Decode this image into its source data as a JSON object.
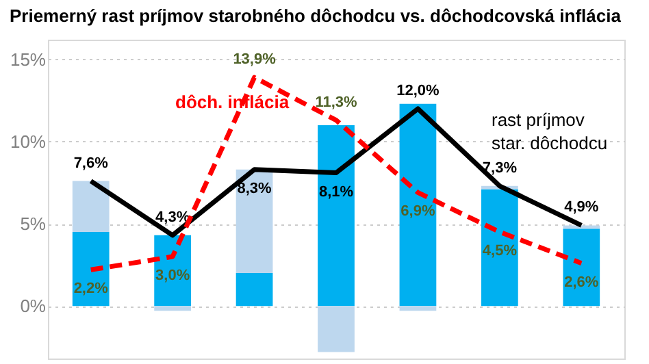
{
  "chart_data": {
    "type": "bar",
    "title": "Priemerný rast príjmov starobného dôchodcu vs. dôchodcovská inflácia",
    "categories": [
      null,
      null,
      null,
      null,
      null,
      null,
      null
    ],
    "stacked": true,
    "series": [
      {
        "color": "#00b0f0",
        "values": [
          4.5,
          4.3,
          2.0,
          11.0,
          12.3,
          7.1,
          4.7
        ]
      },
      {
        "color": "#bdd7ee",
        "values": [
          3.1,
          -0.3,
          6.3,
          -2.8,
          -0.3,
          0.2,
          0.2
        ]
      },
      {
        "type": "line",
        "name": "rast príjmov star. dôchodcu",
        "color": "#000000",
        "line_style": "solid",
        "values": [
          7.6,
          4.3,
          8.3,
          8.1,
          12.0,
          7.3,
          4.9
        ],
        "value_labels": [
          "7,6%",
          "4,3%",
          "8,3%",
          "8,1%",
          "12,0%",
          "7,3%",
          "4,9%"
        ]
      },
      {
        "type": "line",
        "name": "dôch. inflácia",
        "color": "#ff0000",
        "line_style": "dashed",
        "values": [
          2.2,
          3.0,
          13.9,
          11.3,
          6.9,
          4.5,
          2.6
        ],
        "value_labels": [
          "2,2%",
          "3,0%",
          "13,9%",
          "11,3%",
          "6,9%",
          "4,5%",
          "2,6%"
        ]
      }
    ],
    "ylim": [
      -3.2,
      16.2
    ],
    "yticks": [
      {
        "value": 0,
        "label": "0%"
      },
      {
        "value": 5,
        "label": "5%"
      },
      {
        "value": 10,
        "label": "10%"
      },
      {
        "value": 15,
        "label": "15%"
      }
    ],
    "grid": "y",
    "tick_labels": "y",
    "marker": "none"
  }
}
